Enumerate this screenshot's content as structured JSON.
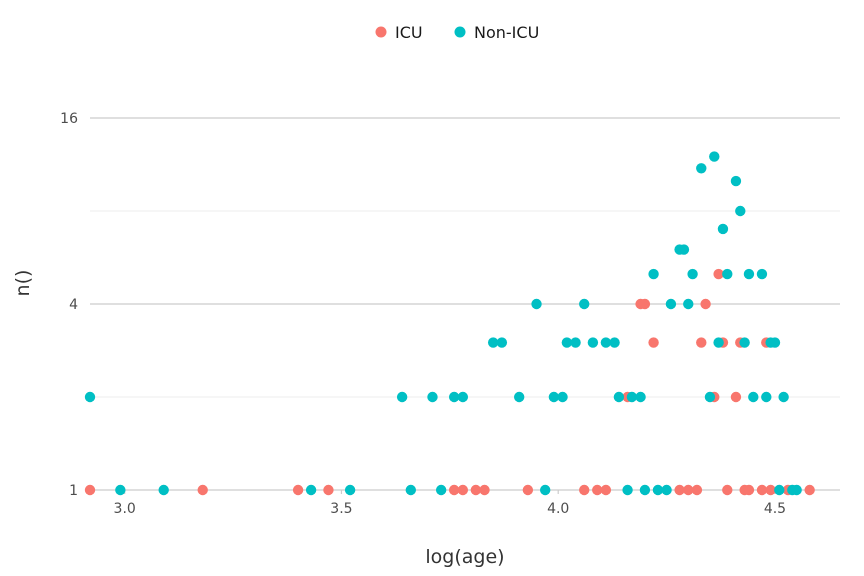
{
  "chart_data": {
    "type": "scatter",
    "xlabel": "log(age)",
    "ylabel": "n()",
    "x_scale": "linear",
    "y_scale": "log2",
    "xlim": [
      2.92,
      4.65
    ],
    "ylim": [
      1,
      32
    ],
    "x_ticks": [
      3.0,
      3.5,
      4.0,
      4.5
    ],
    "x_tick_labels": [
      "3.0",
      "3.5",
      "4.0",
      "4.5"
    ],
    "y_ticks": [
      1,
      4,
      16
    ],
    "y_tick_labels": [
      "1",
      "4",
      "16"
    ],
    "grid": true,
    "legend_position": "top",
    "series": [
      {
        "name": "ICU",
        "color": "#F8766D",
        "points": [
          [
            2.92,
            1
          ],
          [
            3.18,
            1
          ],
          [
            3.4,
            1
          ],
          [
            3.47,
            1
          ],
          [
            3.76,
            1
          ],
          [
            3.78,
            1
          ],
          [
            3.81,
            1
          ],
          [
            3.83,
            1
          ],
          [
            3.93,
            1
          ],
          [
            4.06,
            1
          ],
          [
            4.09,
            1
          ],
          [
            4.11,
            1
          ],
          [
            4.16,
            2
          ],
          [
            4.19,
            4
          ],
          [
            4.2,
            4
          ],
          [
            4.22,
            3
          ],
          [
            4.28,
            1
          ],
          [
            4.3,
            1
          ],
          [
            4.32,
            1
          ],
          [
            4.33,
            3
          ],
          [
            4.34,
            4
          ],
          [
            4.36,
            2
          ],
          [
            4.37,
            5
          ],
          [
            4.38,
            3
          ],
          [
            4.39,
            1
          ],
          [
            4.41,
            2
          ],
          [
            4.42,
            3
          ],
          [
            4.43,
            1
          ],
          [
            4.44,
            1
          ],
          [
            4.47,
            1
          ],
          [
            4.48,
            3
          ],
          [
            4.49,
            1
          ],
          [
            4.53,
            1
          ],
          [
            4.58,
            1
          ]
        ]
      },
      {
        "name": "Non-ICU",
        "color": "#00BFC4",
        "points": [
          [
            2.92,
            2
          ],
          [
            2.99,
            1
          ],
          [
            3.09,
            1
          ],
          [
            3.43,
            1
          ],
          [
            3.52,
            1
          ],
          [
            3.64,
            2
          ],
          [
            3.66,
            1
          ],
          [
            3.71,
            2
          ],
          [
            3.73,
            1
          ],
          [
            3.76,
            2
          ],
          [
            3.78,
            2
          ],
          [
            3.85,
            3
          ],
          [
            3.87,
            3
          ],
          [
            3.91,
            2
          ],
          [
            3.95,
            4
          ],
          [
            3.97,
            1
          ],
          [
            3.99,
            2
          ],
          [
            4.01,
            2
          ],
          [
            4.02,
            3
          ],
          [
            4.04,
            3
          ],
          [
            4.06,
            4
          ],
          [
            4.08,
            3
          ],
          [
            4.11,
            3
          ],
          [
            4.13,
            3
          ],
          [
            4.14,
            2
          ],
          [
            4.16,
            1
          ],
          [
            4.17,
            2
          ],
          [
            4.19,
            2
          ],
          [
            4.2,
            1
          ],
          [
            4.22,
            5
          ],
          [
            4.23,
            1
          ],
          [
            4.25,
            1
          ],
          [
            4.26,
            4
          ],
          [
            4.28,
            6
          ],
          [
            4.29,
            6
          ],
          [
            4.3,
            4
          ],
          [
            4.31,
            5
          ],
          [
            4.33,
            11
          ],
          [
            4.35,
            2
          ],
          [
            4.36,
            12
          ],
          [
            4.37,
            3
          ],
          [
            4.38,
            7
          ],
          [
            4.39,
            5
          ],
          [
            4.41,
            10
          ],
          [
            4.42,
            8
          ],
          [
            4.43,
            3
          ],
          [
            4.44,
            5
          ],
          [
            4.45,
            2
          ],
          [
            4.47,
            5
          ],
          [
            4.48,
            2
          ],
          [
            4.49,
            3
          ],
          [
            4.5,
            3
          ],
          [
            4.51,
            1
          ],
          [
            4.52,
            2
          ],
          [
            4.54,
            1
          ],
          [
            4.55,
            1
          ]
        ]
      }
    ]
  }
}
